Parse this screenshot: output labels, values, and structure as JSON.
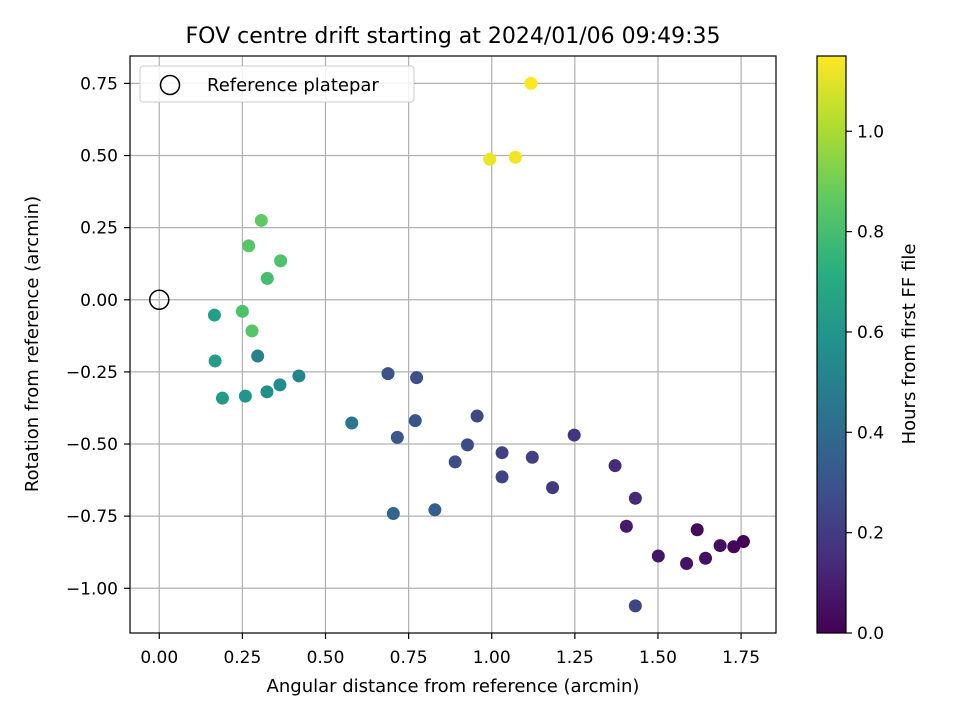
{
  "chart_data": {
    "type": "scatter",
    "title": "FOV centre drift starting at 2024/01/06 09:49:35",
    "xlabel": "Angular distance from reference (arcmin)",
    "ylabel": "Rotation from reference (arcmin)",
    "xlim": [
      -0.088,
      1.855
    ],
    "ylim": [
      -1.155,
      0.845
    ],
    "xticks": [
      0.0,
      0.25,
      0.5,
      0.75,
      1.0,
      1.25,
      1.5,
      1.75
    ],
    "xtick_labels": [
      "0.00",
      "0.25",
      "0.50",
      "0.75",
      "1.00",
      "1.25",
      "1.50",
      "1.75"
    ],
    "yticks": [
      -1.0,
      -0.75,
      -0.5,
      -0.25,
      0.0,
      0.25,
      0.5,
      0.75
    ],
    "ytick_labels": [
      "−1.00",
      "−0.75",
      "−0.50",
      "−0.25",
      "0.00",
      "0.25",
      "0.50",
      "0.75"
    ],
    "grid": true,
    "legend": {
      "position": "top-left",
      "entries": [
        "Reference platepar"
      ]
    },
    "colorbar": {
      "label": "Hours from first FF file",
      "colormap": "viridis",
      "range": [
        0.0,
        1.15
      ],
      "ticks": [
        0.0,
        0.2,
        0.4,
        0.6,
        0.8,
        1.0
      ],
      "tick_labels": [
        "0.0",
        "0.2",
        "0.4",
        "0.6",
        "0.8",
        "1.0"
      ]
    },
    "reference_point": {
      "name": "Reference platepar",
      "x": 0.0,
      "y": 0.0
    },
    "points": [
      {
        "x": 1.757,
        "y": -0.838,
        "hours": 0.0
      },
      {
        "x": 1.728,
        "y": -0.856,
        "hours": 0.02
      },
      {
        "x": 1.687,
        "y": -0.852,
        "hours": 0.04
      },
      {
        "x": 1.643,
        "y": -0.896,
        "hours": 0.05
      },
      {
        "x": 1.618,
        "y": -0.797,
        "hours": 0.03
      },
      {
        "x": 1.586,
        "y": -0.914,
        "hours": 0.06
      },
      {
        "x": 1.501,
        "y": -0.888,
        "hours": 0.07
      },
      {
        "x": 1.405,
        "y": -0.785,
        "hours": 0.08
      },
      {
        "x": 1.432,
        "y": -0.688,
        "hours": 0.13
      },
      {
        "x": 1.371,
        "y": -0.575,
        "hours": 0.14
      },
      {
        "x": 1.432,
        "y": -1.061,
        "hours": 0.24
      },
      {
        "x": 1.248,
        "y": -0.469,
        "hours": 0.17
      },
      {
        "x": 1.183,
        "y": -0.651,
        "hours": 0.19
      },
      {
        "x": 1.122,
        "y": -0.546,
        "hours": 0.21
      },
      {
        "x": 1.031,
        "y": -0.53,
        "hours": 0.22
      },
      {
        "x": 1.031,
        "y": -0.614,
        "hours": 0.23
      },
      {
        "x": 0.956,
        "y": -0.403,
        "hours": 0.25
      },
      {
        "x": 0.927,
        "y": -0.503,
        "hours": 0.26
      },
      {
        "x": 0.89,
        "y": -0.562,
        "hours": 0.27
      },
      {
        "x": 0.774,
        "y": -0.27,
        "hours": 0.28
      },
      {
        "x": 0.688,
        "y": -0.256,
        "hours": 0.29
      },
      {
        "x": 0.77,
        "y": -0.419,
        "hours": 0.3
      },
      {
        "x": 0.716,
        "y": -0.477,
        "hours": 0.31
      },
      {
        "x": 0.829,
        "y": -0.728,
        "hours": 0.34
      },
      {
        "x": 0.704,
        "y": -0.741,
        "hours": 0.37
      },
      {
        "x": 0.579,
        "y": -0.427,
        "hours": 0.45
      },
      {
        "x": 0.42,
        "y": -0.264,
        "hours": 0.52
      },
      {
        "x": 0.363,
        "y": -0.295,
        "hours": 0.55
      },
      {
        "x": 0.324,
        "y": -0.319,
        "hours": 0.57
      },
      {
        "x": 0.259,
        "y": -0.334,
        "hours": 0.6
      },
      {
        "x": 0.19,
        "y": -0.341,
        "hours": 0.62
      },
      {
        "x": 0.296,
        "y": -0.195,
        "hours": 0.5
      },
      {
        "x": 0.168,
        "y": -0.212,
        "hours": 0.63
      },
      {
        "x": 0.166,
        "y": -0.053,
        "hours": 0.64
      },
      {
        "x": 0.25,
        "y": -0.04,
        "hours": 0.82
      },
      {
        "x": 0.279,
        "y": -0.108,
        "hours": 0.84
      },
      {
        "x": 0.325,
        "y": 0.074,
        "hours": 0.8
      },
      {
        "x": 0.365,
        "y": 0.135,
        "hours": 0.82
      },
      {
        "x": 0.269,
        "y": 0.187,
        "hours": 0.84
      },
      {
        "x": 0.307,
        "y": 0.275,
        "hours": 0.86
      },
      {
        "x": 0.994,
        "y": 0.487,
        "hours": 1.12
      },
      {
        "x": 1.071,
        "y": 0.494,
        "hours": 1.13
      },
      {
        "x": 1.118,
        "y": 0.75,
        "hours": 1.15
      }
    ]
  }
}
